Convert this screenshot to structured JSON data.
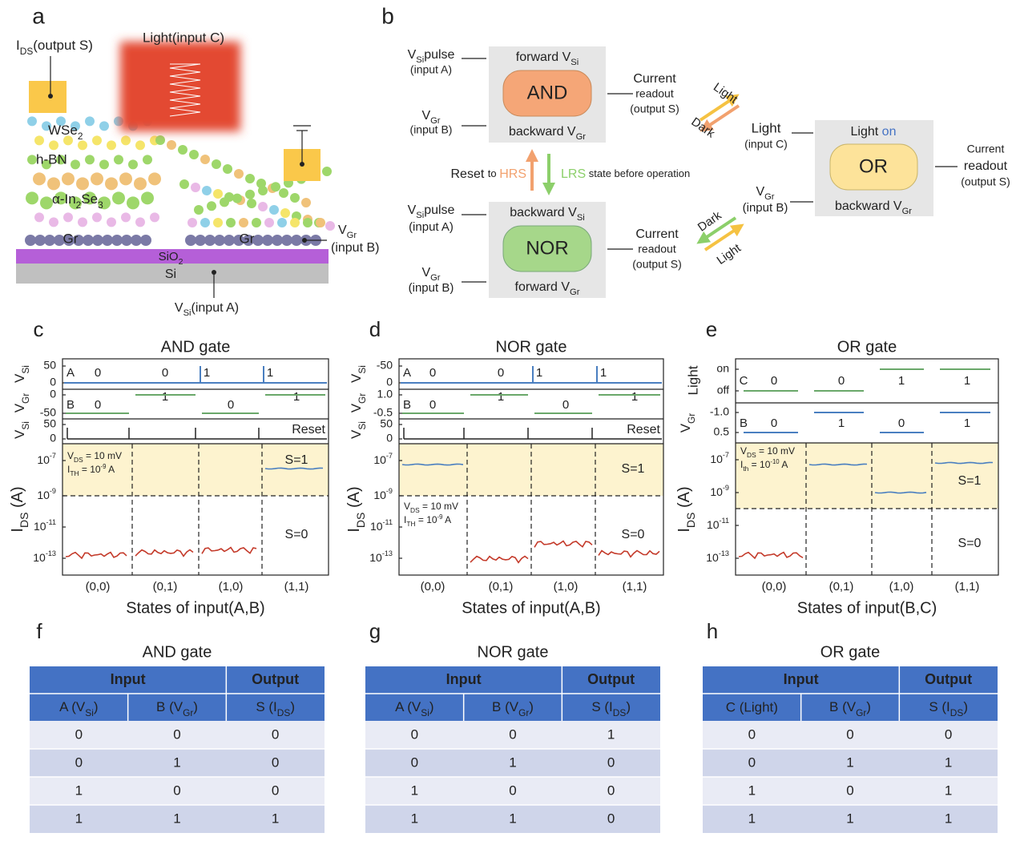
{
  "panel_a": {
    "letter": "a",
    "ids_label": [
      [
        "I",
        ""
      ],
      [
        "DS",
        "sub"
      ],
      [
        "(output S)",
        ""
      ]
    ],
    "light_label": "Light(input C)",
    "wse2": [
      [
        "WSe",
        ""
      ],
      [
        "2",
        "sub"
      ]
    ],
    "hbn": "h-BN",
    "in2se3": [
      [
        "α-In",
        ""
      ],
      [
        "2",
        "sub"
      ],
      [
        "Se",
        ""
      ],
      [
        "3",
        "sub"
      ]
    ],
    "gr_left": "Gr",
    "gr_right": "Gr",
    "sio2": [
      [
        "SiO",
        ""
      ],
      [
        "2",
        "sub"
      ]
    ],
    "si": "Si",
    "vgr": [
      [
        "V",
        ""
      ],
      [
        "Gr",
        "sub"
      ]
    ],
    "vgr_input": "(input B)",
    "vsi_label": [
      [
        "V",
        ""
      ],
      [
        "Si",
        "sub"
      ],
      [
        "(input A)",
        ""
      ]
    ]
  },
  "panel_b": {
    "letter": "b",
    "and": {
      "input_a": [
        [
          "V",
          ""
        ],
        [
          "Si",
          "sub"
        ],
        [
          "pulse",
          ""
        ]
      ],
      "input_a_sub": "(input A)",
      "input_b": [
        [
          "V",
          ""
        ],
        [
          "Gr",
          "sub"
        ]
      ],
      "input_b_sub": "(input B)",
      "top": [
        [
          "forward V",
          ""
        ],
        [
          "Si",
          "sub"
        ]
      ],
      "gate": "AND",
      "bottom": [
        [
          "backward V",
          ""
        ],
        [
          "Gr",
          "sub"
        ]
      ],
      "out1": "Current",
      "out2": "readout",
      "out3": "(output S)"
    },
    "reset": [
      [
        "Reset ",
        ""
      ],
      [
        "to ",
        "small"
      ],
      [
        "HRS",
        "hrs"
      ]
    ],
    "lrs": [
      [
        "LRS",
        "lrs"
      ],
      [
        " state before operation",
        "small"
      ]
    ],
    "arrow_top": {
      "light": "Light",
      "dark": "Dark"
    },
    "nor": {
      "input_a": [
        [
          "V",
          ""
        ],
        [
          "Si",
          "sub"
        ],
        [
          "pulse",
          ""
        ]
      ],
      "input_a_sub": "(input A)",
      "input_b": [
        [
          "V",
          ""
        ],
        [
          "Gr",
          "sub"
        ]
      ],
      "input_b_sub": "(input B)",
      "top": [
        [
          "backward V",
          ""
        ],
        [
          "Si",
          "sub"
        ]
      ],
      "gate": "NOR",
      "bottom": [
        [
          "forward V",
          ""
        ],
        [
          "Gr",
          "sub"
        ]
      ],
      "out1": "Current",
      "out2": "readout",
      "out3": "(output S)"
    },
    "arrow_bottom": {
      "dark": "Dark",
      "light": "Light"
    },
    "or": {
      "input_c": "Light",
      "input_c_sub": "(input C)",
      "input_b": [
        [
          "V",
          ""
        ],
        [
          "Gr",
          "sub"
        ]
      ],
      "input_b_sub": "(input B)",
      "top": [
        [
          "Light ",
          ""
        ],
        [
          "on",
          "on"
        ]
      ],
      "gate": "OR",
      "bottom": [
        [
          "backward V",
          ""
        ],
        [
          "Gr",
          "sub"
        ]
      ],
      "out1": "Current",
      "out2": "readout",
      "out3": "(output S)"
    }
  },
  "panel_c": {
    "letter": "c",
    "title": "AND gate",
    "ylabels": [
      [
        [
          "V",
          ""
        ],
        [
          "Si",
          "sub"
        ]
      ],
      [
        [
          "V",
          ""
        ],
        [
          "Gr",
          "sub"
        ]
      ],
      [
        [
          "V",
          ""
        ],
        [
          "Si",
          "sub"
        ]
      ],
      [
        [
          "I",
          ""
        ],
        [
          "DS",
          "sub"
        ],
        [
          " (A)",
          ""
        ]
      ]
    ],
    "ticks_top": [
      "50",
      "0"
    ],
    "ticks_mid": [
      "0",
      "-50"
    ],
    "ticks_bot": [
      "50",
      "0"
    ],
    "ids_ticks": [
      [
        [
          "10",
          ""
        ],
        [
          "-7",
          "sup"
        ]
      ],
      [
        [
          "10",
          ""
        ],
        [
          "-9",
          "sup"
        ]
      ],
      [
        [
          "10",
          ""
        ],
        [
          "-11",
          "sup"
        ]
      ],
      [
        [
          "10",
          ""
        ],
        [
          "-13",
          "sup"
        ]
      ]
    ],
    "row_a": [
      "A",
      "0",
      "0",
      "1",
      "1"
    ],
    "row_b": [
      "B",
      "0",
      "1",
      "0",
      "1"
    ],
    "reset": "Reset",
    "vds": [
      [
        "V",
        ""
      ],
      [
        "DS",
        "sub"
      ],
      [
        " = 10 mV",
        ""
      ]
    ],
    "ith": [
      [
        "I",
        ""
      ],
      [
        "TH",
        "sub"
      ],
      [
        " = 10",
        ""
      ],
      [
        "-9",
        "sup"
      ],
      [
        " A",
        ""
      ]
    ],
    "s1": "S=1",
    "s0": "S=0",
    "categories": [
      "(0,0)",
      "(0,1)",
      "(1,0)",
      "(1,1)"
    ],
    "xlabel": "States of input(A,B)"
  },
  "panel_d": {
    "letter": "d",
    "title": "NOR gate",
    "ylabels": [
      [
        [
          "V",
          ""
        ],
        [
          "Si",
          "sub"
        ]
      ],
      [
        [
          "V",
          ""
        ],
        [
          "Gr",
          "sub"
        ]
      ],
      [
        [
          "V",
          ""
        ],
        [
          "Si",
          "sub"
        ]
      ],
      [
        [
          "I",
          ""
        ],
        [
          "DS",
          "sub"
        ],
        [
          " (A)",
          ""
        ]
      ]
    ],
    "ticks_top": [
      "-50",
      "0"
    ],
    "ticks_mid": [
      "1.0",
      "-0.5"
    ],
    "ticks_bot": [
      "50",
      "0"
    ],
    "ids_ticks": [
      [
        [
          "10",
          ""
        ],
        [
          "-7",
          "sup"
        ]
      ],
      [
        [
          "10",
          ""
        ],
        [
          "-9",
          "sup"
        ]
      ],
      [
        [
          "10",
          ""
        ],
        [
          "-11",
          "sup"
        ]
      ],
      [
        [
          "10",
          ""
        ],
        [
          "-13",
          "sup"
        ]
      ]
    ],
    "row_a": [
      "A",
      "0",
      "0",
      "1",
      "1"
    ],
    "row_b": [
      "B",
      "0",
      "1",
      "0",
      "1"
    ],
    "reset": "Reset",
    "vds": [
      [
        "V",
        ""
      ],
      [
        "DS",
        "sub"
      ],
      [
        " = 10 mV",
        ""
      ]
    ],
    "ith": [
      [
        "I",
        ""
      ],
      [
        "TH",
        "sub"
      ],
      [
        " = 10",
        ""
      ],
      [
        "-9",
        "sup"
      ],
      [
        " A",
        ""
      ]
    ],
    "s1": "S=1",
    "s0": "S=0",
    "categories": [
      "(0,0)",
      "(0,1)",
      "(1,0)",
      "(1,1)"
    ],
    "xlabel": "States of input(A,B)"
  },
  "panel_e": {
    "letter": "e",
    "title": "OR gate",
    "ylabels": [
      "Light",
      [
        [
          "V",
          ""
        ],
        [
          "Gr",
          "sub"
        ]
      ],
      [
        [
          "I",
          ""
        ],
        [
          "DS",
          "sub"
        ],
        [
          " (A)",
          ""
        ]
      ]
    ],
    "ticks_top": [
      "on",
      "off"
    ],
    "ticks_mid": [
      "-1.0",
      "0.5"
    ],
    "ids_ticks": [
      [
        [
          "10",
          ""
        ],
        [
          "-7",
          "sup"
        ]
      ],
      [
        [
          "10",
          ""
        ],
        [
          "-9",
          "sup"
        ]
      ],
      [
        [
          "10",
          ""
        ],
        [
          "-11",
          "sup"
        ]
      ],
      [
        [
          "10",
          ""
        ],
        [
          "-13",
          "sup"
        ]
      ]
    ],
    "row_a": [
      "C",
      "0",
      "0",
      "1",
      "1"
    ],
    "row_b": [
      "B",
      "0",
      "1",
      "0",
      "1"
    ],
    "vds": [
      [
        "V",
        ""
      ],
      [
        "DS",
        "sub"
      ],
      [
        " = 10 mV",
        ""
      ]
    ],
    "ith": [
      [
        "I",
        ""
      ],
      [
        "th",
        "sub"
      ],
      [
        " = 10",
        ""
      ],
      [
        "-10",
        "sup"
      ],
      [
        " A",
        ""
      ]
    ],
    "s1": "S=1",
    "s0": "S=0",
    "categories": [
      "(0,0)",
      "(0,1)",
      "(1,0)",
      "(1,1)"
    ],
    "xlabel": "States of input(B,C)"
  },
  "table_f": {
    "letter": "f",
    "title": "AND gate",
    "header": [
      "Input",
      "Output"
    ],
    "columns": [
      [
        [
          "A (V",
          ""
        ],
        [
          "Si",
          "sub"
        ],
        [
          ")",
          ""
        ]
      ],
      [
        [
          "B (V",
          ""
        ],
        [
          "Gr",
          "sub"
        ],
        [
          ")",
          ""
        ]
      ],
      [
        [
          "S (I",
          ""
        ],
        [
          "DS",
          "sub"
        ],
        [
          ")",
          ""
        ]
      ]
    ],
    "rows": [
      [
        0,
        0,
        0
      ],
      [
        0,
        1,
        0
      ],
      [
        1,
        0,
        0
      ],
      [
        1,
        1,
        1
      ]
    ]
  },
  "table_g": {
    "letter": "g",
    "title": "NOR gate",
    "header": [
      "Input",
      "Output"
    ],
    "columns": [
      [
        [
          "A (V",
          ""
        ],
        [
          "Si",
          "sub"
        ],
        [
          ")",
          ""
        ]
      ],
      [
        [
          "B (V",
          ""
        ],
        [
          "Gr",
          "sub"
        ],
        [
          ")",
          ""
        ]
      ],
      [
        [
          "S (I",
          ""
        ],
        [
          "DS",
          "sub"
        ],
        [
          ")",
          ""
        ]
      ]
    ],
    "rows": [
      [
        0,
        0,
        1
      ],
      [
        0,
        1,
        0
      ],
      [
        1,
        0,
        0
      ],
      [
        1,
        1,
        0
      ]
    ]
  },
  "table_h": {
    "letter": "h",
    "title": "OR gate",
    "header": [
      "Input",
      "Output"
    ],
    "columns": [
      "C (Light)",
      [
        [
          "B (V",
          ""
        ],
        [
          "Gr",
          "sub"
        ],
        [
          ")",
          ""
        ]
      ],
      [
        [
          "S (I",
          ""
        ],
        [
          "DS",
          "sub"
        ],
        [
          ")",
          ""
        ]
      ]
    ],
    "rows": [
      [
        0,
        0,
        0
      ],
      [
        0,
        1,
        1
      ],
      [
        1,
        0,
        1
      ],
      [
        1,
        1,
        1
      ]
    ]
  }
}
